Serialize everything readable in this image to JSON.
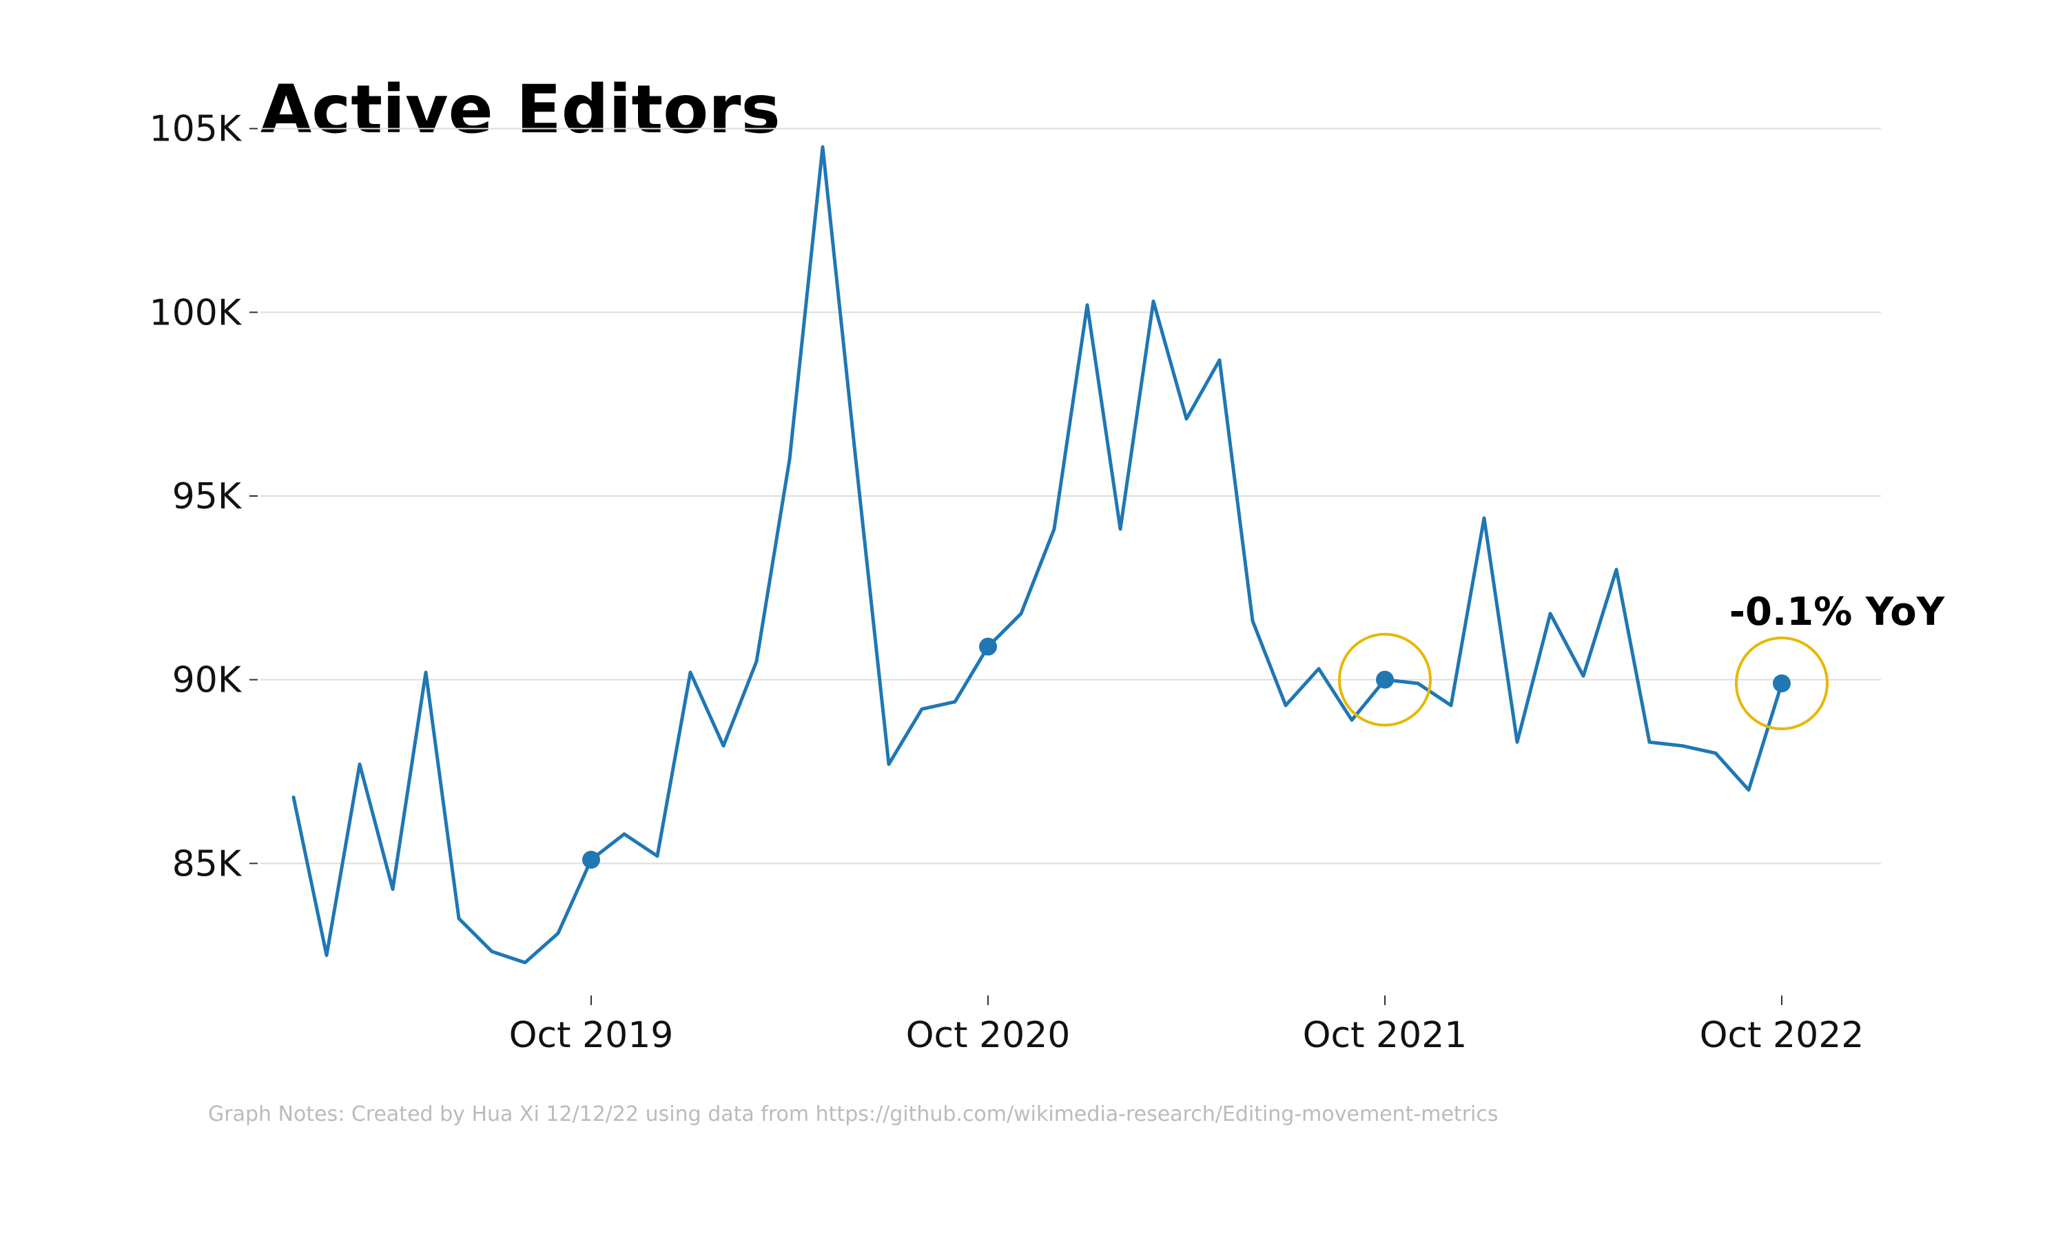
{
  "chart_data": {
    "type": "line",
    "title": "Active Editors",
    "xlabel": "",
    "ylabel": "",
    "ylim": [
      81500,
      105500
    ],
    "yticks": [
      85000,
      90000,
      95000,
      100000,
      105000
    ],
    "ytick_labels": [
      "85K",
      "90K",
      "95K",
      "100K",
      "105K"
    ],
    "xticks": [
      "2019-10",
      "2020-10",
      "2021-10",
      "2022-10"
    ],
    "xtick_labels": [
      "Oct 2019",
      "Oct 2020",
      "Oct 2021",
      "Oct 2022"
    ],
    "x_range": [
      "2018-12",
      "2023-01"
    ],
    "grid": true,
    "line_color": "#1f77b4",
    "highlight_color": "#e6b800",
    "series": [
      {
        "x": [
          "2019-01",
          "2019-02",
          "2019-03",
          "2019-04",
          "2019-05",
          "2019-06",
          "2019-07",
          "2019-08",
          "2019-09",
          "2019-10",
          "2019-11",
          "2019-12",
          "2020-01",
          "2020-02",
          "2020-03",
          "2020-04",
          "2020-05",
          "2020-06",
          "2020-07",
          "2020-08",
          "2020-09",
          "2020-10",
          "2020-11",
          "2020-12",
          "2021-01",
          "2021-02",
          "2021-03",
          "2021-04",
          "2021-05",
          "2021-06",
          "2021-07",
          "2021-08",
          "2021-09",
          "2021-10",
          "2021-11",
          "2021-12",
          "2022-01",
          "2022-02",
          "2022-03",
          "2022-04",
          "2022-05",
          "2022-06",
          "2022-07",
          "2022-08",
          "2022-09",
          "2022-10"
        ],
        "values": [
          86800,
          82500,
          87700,
          84300,
          90200,
          83500,
          82600,
          82300,
          83100,
          85100,
          85800,
          85200,
          90200,
          88200,
          90500,
          96000,
          104500,
          96000,
          87700,
          89200,
          89400,
          90900,
          91800,
          94100,
          100200,
          94100,
          100300,
          97100,
          98700,
          91600,
          89300,
          90300,
          88900,
          90000,
          89900,
          89300,
          94400,
          88300,
          91800,
          90100,
          93000,
          88300,
          88200,
          88000,
          87000,
          89900
        ]
      }
    ],
    "markers": [
      "2019-10",
      "2020-10",
      "2021-10",
      "2022-10"
    ],
    "highlights": [
      "2021-10",
      "2022-10"
    ],
    "annotations": [
      {
        "text": "-0.1% YoY",
        "x": "2022-10"
      }
    ],
    "notes": "Graph Notes: Created by Hua Xi 12/12/22 using data from https://github.com/wikimedia-research/Editing-movement-metrics"
  }
}
